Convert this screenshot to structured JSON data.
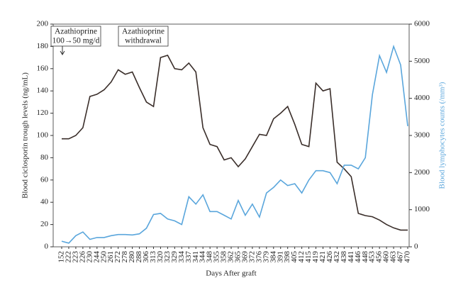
{
  "chart_data": {
    "type": "line",
    "xlabel": "Days After graft",
    "ylabel": "Blood ciclosporin trough levels (ng/mL)",
    "y2label": "Blood lymphocytes counts (/mm³)",
    "categories": [
      "152",
      "222",
      "223",
      "226",
      "230",
      "244",
      "250",
      "261",
      "272",
      "278",
      "280",
      "288",
      "306",
      "313",
      "320",
      "323",
      "329",
      "334",
      "337",
      "341",
      "344",
      "348",
      "355",
      "358",
      "362",
      "365",
      "369",
      "372",
      "376",
      "379",
      "384",
      "391",
      "398",
      "405",
      "412",
      "415",
      "419",
      "421",
      "426",
      "432",
      "438",
      "441",
      "446",
      "448",
      "453",
      "456",
      "460",
      "463",
      "467",
      "470"
    ],
    "series": [
      {
        "name": "Blood ciclosporin trough levels",
        "color": "#3a2e2a",
        "axis": "y",
        "values": [
          97,
          97,
          100,
          107,
          135,
          137,
          141,
          148,
          159,
          155,
          157,
          143,
          130,
          126,
          170,
          172,
          160,
          159,
          165,
          157,
          107,
          92,
          90,
          78,
          80,
          72,
          79,
          90,
          101,
          100,
          115,
          120,
          126,
          110,
          92,
          90,
          147,
          140,
          142,
          76,
          70,
          63,
          30,
          28,
          27,
          24,
          20,
          17,
          15,
          15
        ]
      },
      {
        "name": "Blood lymphocytes counts",
        "color": "#5aa6dc",
        "axis": "y2",
        "values": [
          150,
          100,
          300,
          400,
          200,
          250,
          250,
          300,
          330,
          330,
          320,
          350,
          500,
          870,
          900,
          750,
          700,
          600,
          1350,
          1150,
          1400,
          950,
          950,
          850,
          750,
          1250,
          850,
          1150,
          800,
          1450,
          1600,
          1800,
          1650,
          1700,
          1450,
          1800,
          2050,
          2050,
          2000,
          1700,
          2200,
          2200,
          2100,
          2400,
          4100,
          5150,
          4700,
          5400,
          4900,
          3250
        ]
      }
    ],
    "ylim": [
      0,
      200
    ],
    "yticks": [
      0,
      20,
      40,
      60,
      80,
      100,
      120,
      140,
      160,
      180,
      200
    ],
    "y2lim": [
      0,
      6000
    ],
    "y2ticks": [
      0,
      1000,
      2000,
      3000,
      4000,
      5000,
      6000
    ],
    "annotations": [
      {
        "lines": [
          "Azathioprine",
          "100→50 mg/d"
        ]
      },
      {
        "lines": [
          "Azathioprine",
          "withdrawal"
        ]
      }
    ]
  }
}
